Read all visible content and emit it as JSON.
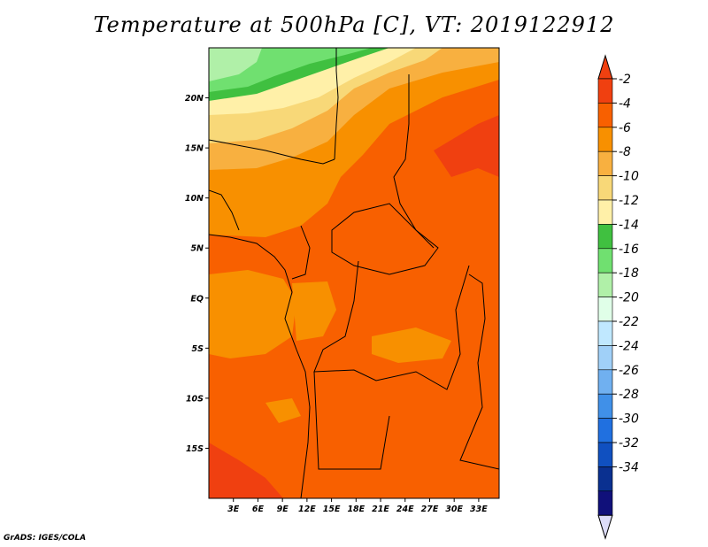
{
  "title": "Temperature at 500hPa [C], VT: 2019122912",
  "credit": "GrADS: IGES/COLA",
  "map": {
    "lon_min": 0,
    "lon_max": 35.5,
    "lat_min": -20.0,
    "lat_max": 25.0,
    "lon_ticks": [
      {
        "v": 3,
        "label": "3E"
      },
      {
        "v": 6,
        "label": "6E"
      },
      {
        "v": 9,
        "label": "9E"
      },
      {
        "v": 12,
        "label": "12E"
      },
      {
        "v": 15,
        "label": "15E"
      },
      {
        "v": 18,
        "label": "18E"
      },
      {
        "v": 21,
        "label": "21E"
      },
      {
        "v": 24,
        "label": "24E"
      },
      {
        "v": 27,
        "label": "27E"
      },
      {
        "v": 30,
        "label": "30E"
      },
      {
        "v": 33,
        "label": "33E"
      }
    ],
    "lat_ticks": [
      {
        "v": 20,
        "label": "20N"
      },
      {
        "v": 15,
        "label": "15N"
      },
      {
        "v": 10,
        "label": "10N"
      },
      {
        "v": 5,
        "label": "5N"
      },
      {
        "v": 0,
        "label": "EQ"
      },
      {
        "v": -5,
        "label": "5S"
      },
      {
        "v": -10,
        "label": "10S"
      },
      {
        "v": -15,
        "label": "15S"
      }
    ]
  },
  "colorbar": {
    "labels": [
      "-2",
      "-4",
      "-6",
      "-8",
      "-10",
      "-12",
      "-14",
      "-16",
      "-18",
      "-20",
      "-22",
      "-24",
      "-26",
      "-28",
      "-30",
      "-32",
      "-34"
    ],
    "colors": [
      "#f04010",
      "#f86000",
      "#f89000",
      "#f8b040",
      "#f8d878",
      "#fff0a8",
      "#40c040",
      "#70e070",
      "#b0f0a8",
      "#e0ffe8",
      "#c0e8ff",
      "#a0d0f8",
      "#70b0f0",
      "#4090e8",
      "#2070e0",
      "#1050c0",
      "#0a3090",
      "#10107a"
    ],
    "top_color": "#f04010",
    "bottom_color": "#dcdcf8"
  }
}
